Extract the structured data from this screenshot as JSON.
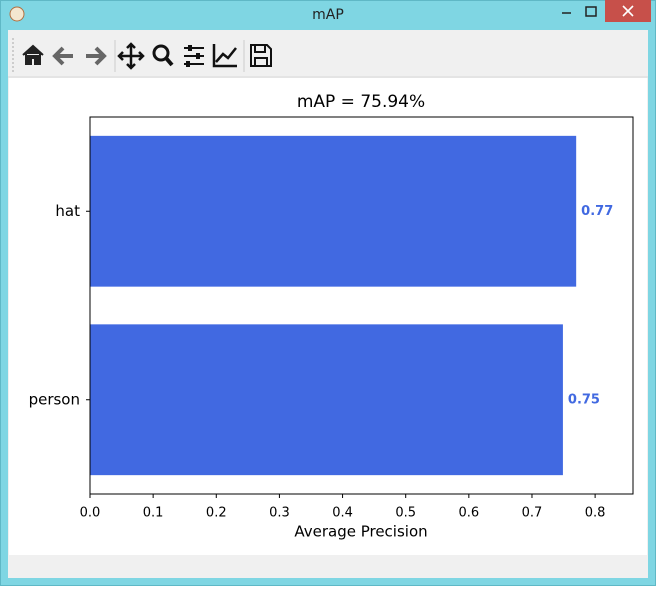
{
  "window": {
    "title": "mAP"
  },
  "chart_data": {
    "type": "barh",
    "title": "mAP = 75.94%",
    "x_label": "Average Precision",
    "categories": [
      "hat",
      "person"
    ],
    "values": [
      0.77,
      0.749
    ],
    "value_labels": [
      "0.77",
      "0.75"
    ],
    "color": "#4169e1",
    "xlim": [
      0,
      0.86
    ],
    "xticks": [
      {
        "value": 0,
        "label": "0.0"
      },
      0.1,
      0.2,
      0.3,
      0.4,
      0.5,
      0.6,
      0.7,
      0.8
    ]
  }
}
